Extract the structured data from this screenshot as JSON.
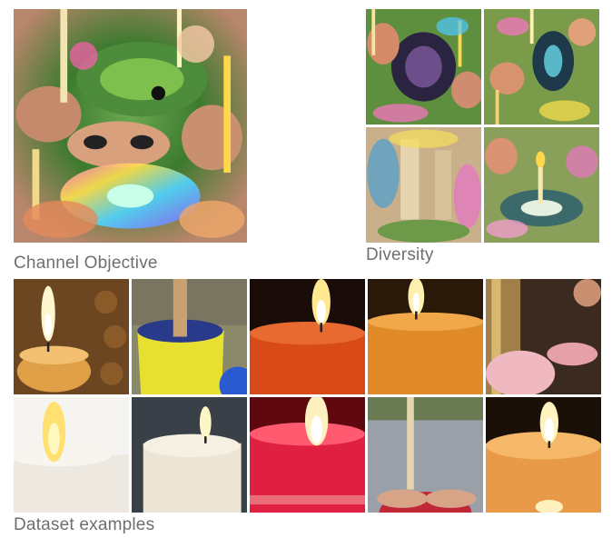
{
  "sections": {
    "channel_objective": {
      "label": "Channel Objective",
      "image": "psychedelic-feature-visualization"
    },
    "diversity": {
      "label": "Diversity",
      "images": [
        "diversity-1",
        "diversity-2",
        "diversity-3",
        "diversity-4"
      ]
    },
    "dataset": {
      "label": "Dataset examples",
      "images": [
        "candle-honeycomb",
        "candle-yellow-holder",
        "candle-red-glow",
        "candle-orange-dark",
        "candle-gold-pink",
        "candle-white-bright",
        "candle-white-pillar",
        "candle-red-jar",
        "candle-stick-cobblestone",
        "candle-orange-tealight"
      ]
    }
  },
  "colors": {
    "label": "#6f6f6f",
    "background": "#ffffff"
  }
}
